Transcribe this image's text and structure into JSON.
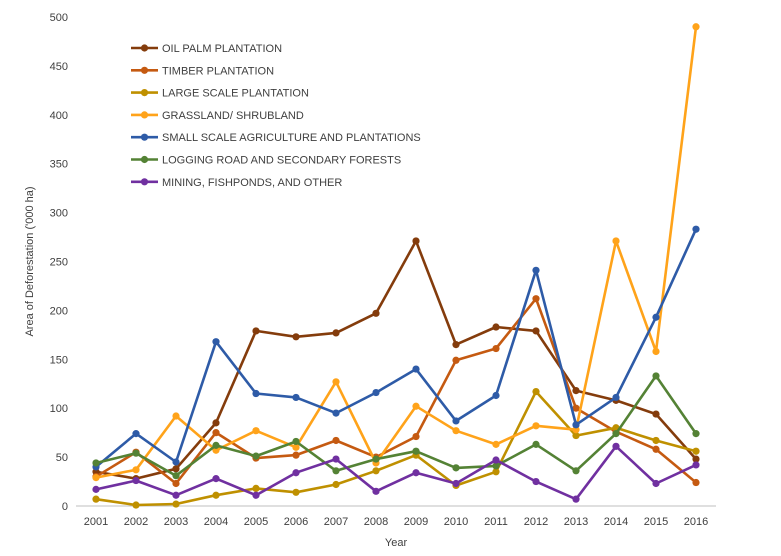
{
  "chart_data": {
    "type": "line",
    "title": "",
    "xlabel": "Year",
    "ylabel": "Area of Deforestation ('000 ha)",
    "ylim": [
      0,
      500
    ],
    "yticks": [
      0,
      50,
      100,
      150,
      200,
      250,
      300,
      350,
      400,
      450,
      500
    ],
    "grid": false,
    "legend_position": "top-left",
    "categories": [
      "2001",
      "2002",
      "2003",
      "2004",
      "2005",
      "2006",
      "2007",
      "2008",
      "2009",
      "2010",
      "2011",
      "2012",
      "2013",
      "2014",
      "2015",
      "2016"
    ],
    "series": [
      {
        "name": "OIL PALM PLANTATION",
        "color": "#843c0c",
        "values": [
          35,
          28,
          38,
          85,
          179,
          173,
          177,
          197,
          271,
          165,
          183,
          179,
          118,
          108,
          94,
          48
        ]
      },
      {
        "name": "TIMBER PLANTATION",
        "color": "#c55a11",
        "values": [
          30,
          55,
          23,
          75,
          49,
          52,
          67,
          50,
          71,
          149,
          161,
          212,
          100,
          76,
          58,
          24
        ]
      },
      {
        "name": "LARGE SCALE PLANTATION",
        "color": "#bf9000",
        "values": [
          7,
          1,
          2,
          11,
          18,
          14,
          22,
          36,
          52,
          21,
          35,
          117,
          72,
          80,
          67,
          56
        ]
      },
      {
        "name": "GRASSLAND/ SHRUBLAND",
        "color": "#ffa31a",
        "values": [
          29,
          37,
          92,
          57,
          77,
          60,
          127,
          44,
          102,
          77,
          63,
          82,
          78,
          271,
          158,
          490
        ]
      },
      {
        "name": "SMALL SCALE AGRICULTURE AND PLANTATIONS",
        "color": "#2e5ba7",
        "values": [
          40,
          74,
          45,
          168,
          115,
          111,
          95,
          116,
          140,
          87,
          113,
          241,
          83,
          111,
          193,
          283
        ]
      },
      {
        "name": "LOGGING ROAD AND SECONDARY FORESTS",
        "color": "#548235",
        "values": [
          44,
          54,
          31,
          62,
          51,
          66,
          36,
          48,
          56,
          39,
          41,
          63,
          36,
          74,
          133,
          74
        ]
      },
      {
        "name": "MINING, FISHPONDS, AND OTHER",
        "color": "#7030a0",
        "values": [
          17,
          26,
          11,
          28,
          11,
          34,
          48,
          15,
          34,
          23,
          47,
          25,
          7,
          61,
          23,
          42
        ]
      }
    ]
  }
}
